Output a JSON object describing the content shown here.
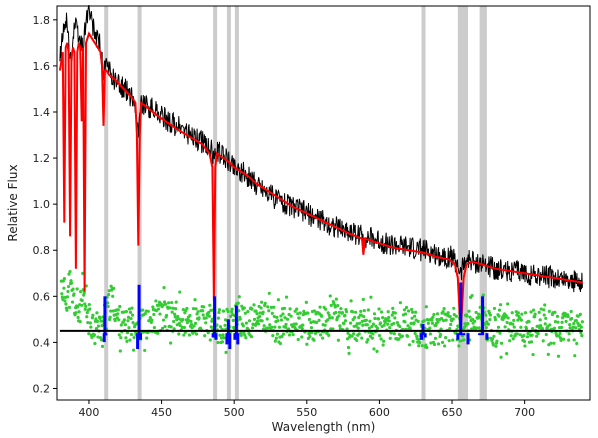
{
  "chart_data": {
    "type": "line",
    "title": "",
    "xlabel": "Wavelength (nm)",
    "ylabel": "Relative Flux",
    "xlim": [
      378,
      745
    ],
    "ylim": [
      0.15,
      1.86
    ],
    "xticks": [
      400,
      450,
      500,
      550,
      600,
      650,
      700
    ],
    "yticks": [
      0.2,
      0.4,
      0.6,
      0.8,
      1.0,
      1.2,
      1.4,
      1.6,
      1.8
    ],
    "xtick_labels": [
      "400",
      "450",
      "500",
      "550",
      "600",
      "650",
      "700"
    ],
    "ytick_labels": [
      "0.2",
      "0.4",
      "0.6",
      "0.8",
      "1.0",
      "1.2",
      "1.4",
      "1.6",
      "1.8"
    ],
    "grid": false,
    "masked_bands": [
      [
        410.5,
        411.5
      ],
      [
        433.5,
        435.5
      ],
      [
        485.5,
        487.5
      ],
      [
        495,
        497
      ],
      [
        500.5,
        502.5
      ],
      [
        629,
        631.5
      ],
      [
        654,
        661
      ],
      [
        669,
        674
      ]
    ],
    "series": [
      {
        "role": "observed-spectrum",
        "color": "#000000",
        "x": [
          380,
          382,
          384,
          386,
          388,
          390,
          392,
          394,
          396,
          398,
          400,
          402,
          404,
          406,
          408,
          410,
          412,
          415,
          420,
          425,
          430,
          432,
          434,
          436,
          440,
          445,
          450,
          455,
          460,
          465,
          470,
          475,
          480,
          484,
          486,
          488,
          490,
          495,
          500,
          505,
          510,
          515,
          520,
          525,
          530,
          540,
          550,
          560,
          570,
          580,
          590,
          600,
          610,
          620,
          630,
          640,
          650,
          654,
          656,
          658,
          660,
          665,
          670,
          680,
          690,
          700,
          710,
          720,
          730,
          740
        ],
        "y": [
          1.66,
          1.72,
          1.82,
          1.7,
          1.62,
          1.78,
          1.74,
          1.7,
          1.68,
          1.8,
          1.84,
          1.78,
          1.74,
          1.72,
          1.68,
          1.56,
          1.6,
          1.56,
          1.52,
          1.5,
          1.46,
          1.44,
          1.3,
          1.44,
          1.42,
          1.41,
          1.38,
          1.36,
          1.34,
          1.32,
          1.3,
          1.28,
          1.26,
          1.24,
          1.18,
          1.24,
          1.22,
          1.2,
          1.16,
          1.14,
          1.12,
          1.09,
          1.07,
          1.04,
          1.02,
          0.99,
          0.96,
          0.93,
          0.9,
          0.88,
          0.86,
          0.84,
          0.82,
          0.81,
          0.8,
          0.78,
          0.77,
          0.74,
          0.69,
          0.74,
          0.76,
          0.75,
          0.74,
          0.72,
          0.71,
          0.7,
          0.69,
          0.68,
          0.67,
          0.66
        ]
      },
      {
        "role": "model-fit",
        "color": "#ff0000",
        "x": [
          380,
          381,
          382,
          383,
          384,
          385,
          386,
          387,
          388,
          389,
          390,
          391,
          392,
          393,
          394,
          395,
          396,
          397,
          398,
          400,
          402,
          404,
          406,
          408,
          409,
          410,
          411,
          412,
          414,
          418,
          424,
          430,
          432,
          433,
          434,
          435,
          436,
          438,
          442,
          448,
          455,
          462,
          470,
          478,
          483,
          485,
          486,
          487,
          488,
          490,
          495,
          500,
          505,
          510,
          515,
          520,
          530,
          540,
          550,
          560,
          570,
          580,
          588,
          589,
          590,
          600,
          610,
          620,
          630,
          640,
          648,
          652,
          654,
          656,
          658,
          660,
          664,
          670,
          680,
          690,
          700,
          710,
          720,
          730,
          740
        ],
        "y": [
          1.58,
          1.62,
          1.66,
          0.92,
          1.68,
          1.7,
          1.66,
          0.86,
          1.64,
          1.68,
          1.66,
          0.72,
          1.66,
          1.7,
          1.68,
          1.36,
          1.68,
          0.62,
          1.7,
          1.74,
          1.72,
          1.7,
          1.68,
          1.66,
          1.6,
          1.34,
          1.58,
          1.58,
          1.56,
          1.54,
          1.5,
          1.46,
          1.44,
          1.3,
          0.82,
          1.3,
          1.44,
          1.43,
          1.41,
          1.38,
          1.35,
          1.32,
          1.29,
          1.26,
          1.22,
          1.16,
          0.58,
          1.16,
          1.22,
          1.21,
          1.19,
          1.16,
          1.14,
          1.12,
          1.09,
          1.07,
          1.03,
          0.99,
          0.96,
          0.93,
          0.9,
          0.87,
          0.85,
          0.78,
          0.85,
          0.83,
          0.81,
          0.8,
          0.79,
          0.77,
          0.76,
          0.74,
          0.68,
          0.44,
          0.68,
          0.74,
          0.75,
          0.74,
          0.72,
          0.71,
          0.7,
          0.69,
          0.68,
          0.67,
          0.66
        ]
      },
      {
        "role": "residuals",
        "color": "#33cc33",
        "x": [
          380,
          384,
          388,
          392,
          396,
          400,
          404,
          408,
          412,
          416,
          420,
          425,
          430,
          440,
          450,
          460,
          470,
          480,
          490,
          500,
          510,
          520,
          530,
          540,
          550,
          560,
          570,
          580,
          590,
          600,
          610,
          620,
          630,
          640,
          650,
          660,
          670,
          680,
          690,
          700,
          710,
          720,
          730,
          740
        ],
        "y": [
          0.66,
          0.6,
          0.62,
          0.52,
          0.58,
          0.5,
          0.48,
          0.46,
          0.52,
          0.6,
          0.5,
          0.46,
          0.49,
          0.47,
          0.52,
          0.5,
          0.48,
          0.49,
          0.46,
          0.51,
          0.48,
          0.52,
          0.47,
          0.49,
          0.46,
          0.48,
          0.52,
          0.47,
          0.47,
          0.48,
          0.46,
          0.49,
          0.44,
          0.46,
          0.48,
          0.47,
          0.49,
          0.45,
          0.47,
          0.46,
          0.48,
          0.46,
          0.47,
          0.45
        ],
        "spread": 0.07
      },
      {
        "role": "masked-residuals",
        "color": "#0000ff",
        "x": [
          410.5,
          411,
          411.5,
          433.5,
          434.5,
          435.5,
          485.5,
          486.5,
          487.5,
          495,
          496,
          497,
          500.5,
          501.5,
          502.5,
          629,
          630,
          631.5,
          654,
          656,
          658,
          661,
          669,
          671,
          674
        ],
        "y": [
          0.41,
          0.6,
          0.44,
          0.38,
          0.65,
          0.42,
          0.43,
          0.6,
          0.42,
          0.4,
          0.5,
          0.38,
          0.42,
          0.56,
          0.4,
          0.42,
          0.48,
          0.43,
          0.42,
          0.66,
          0.44,
          0.4,
          0.44,
          0.6,
          0.42
        ]
      },
      {
        "role": "zero-level",
        "color": "#000000",
        "x": [
          380,
          740
        ],
        "y": [
          0.45,
          0.45
        ]
      }
    ]
  }
}
